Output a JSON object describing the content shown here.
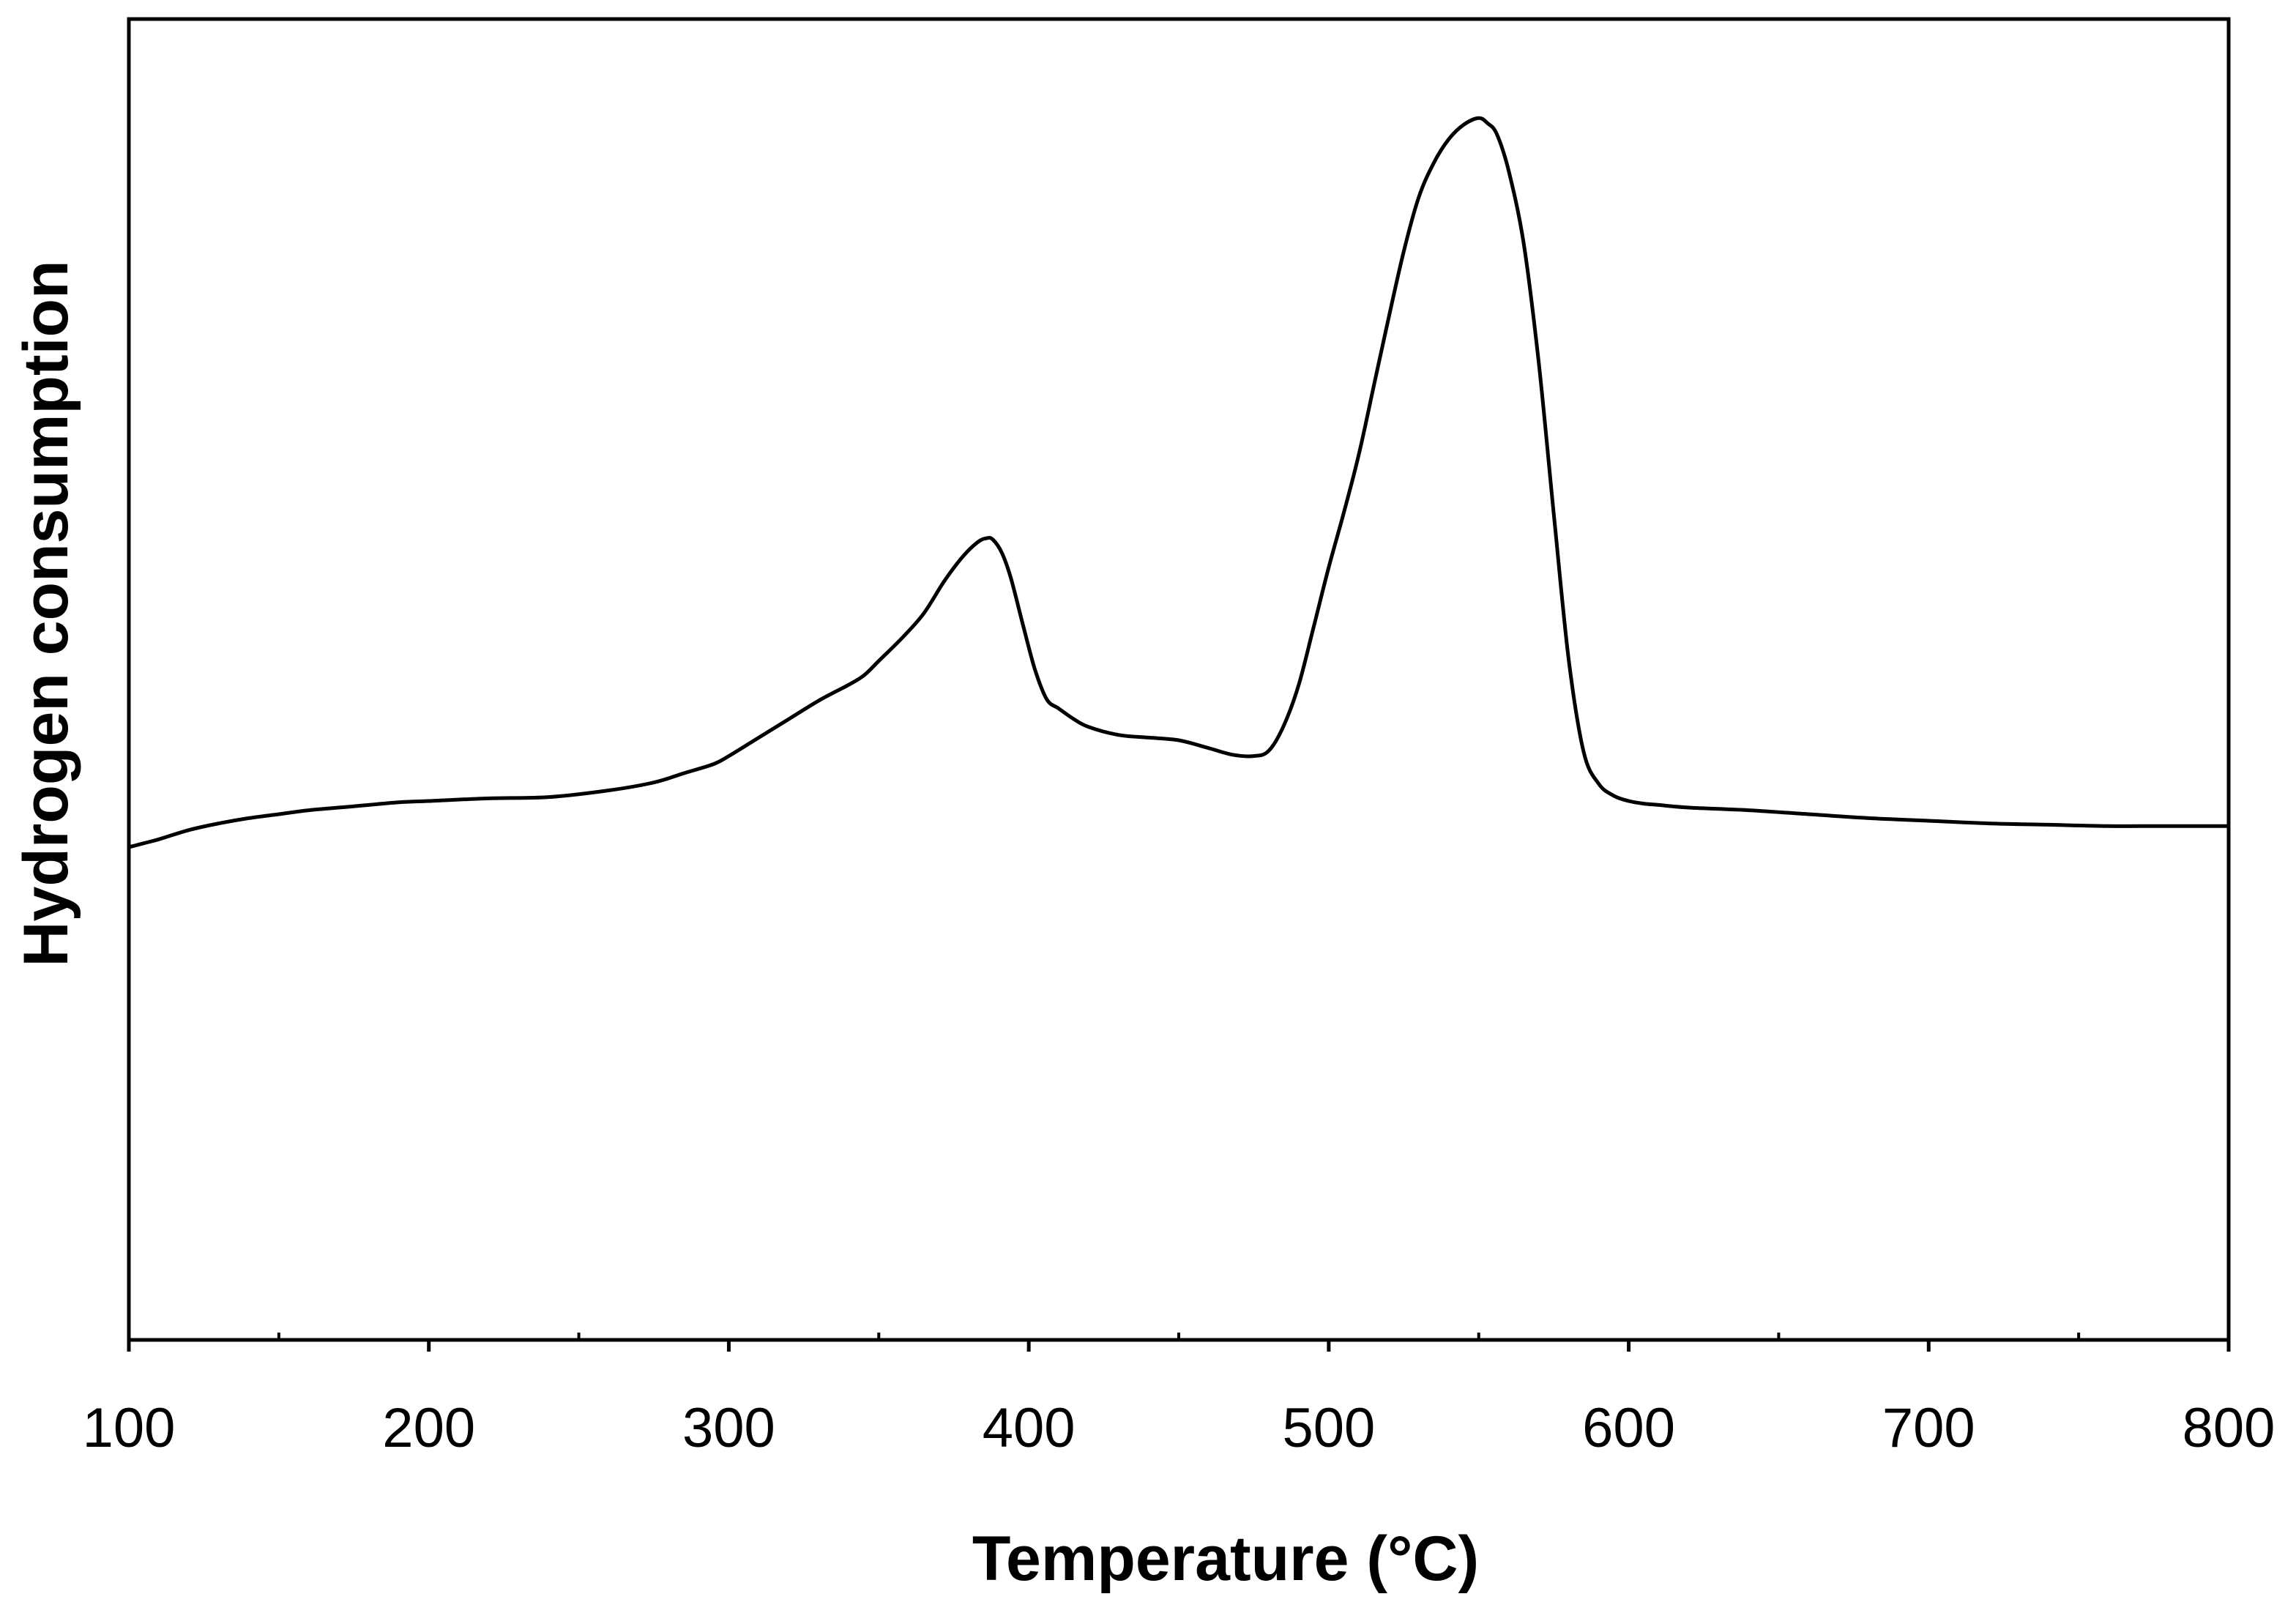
{
  "chart_data": {
    "type": "line",
    "title": "",
    "xlabel": "Temperature (°C)",
    "ylabel": "Hydrogen consumption",
    "xlim": [
      100,
      800
    ],
    "ylim": [
      0,
      100
    ],
    "x_ticks": [
      "100",
      "200",
      "300",
      "400",
      "500",
      "600",
      "700",
      "800"
    ],
    "x_minor_step": 50,
    "y_ticks_shown": false,
    "grid": false,
    "legend": "none",
    "line_color": "#000000",
    "series": [
      {
        "x": [
          100,
          105,
          110,
          120,
          130,
          140,
          150,
          160,
          175,
          190,
          200,
          220,
          240,
          260,
          275,
          285,
          295,
          300,
          310,
          320,
          330,
          340,
          345,
          350,
          358,
          365,
          372,
          378,
          383,
          386,
          388,
          391,
          394,
          398,
          402,
          406,
          410,
          415,
          420,
          430,
          440,
          450,
          460,
          468,
          475,
          480,
          485,
          490,
          495,
          500,
          505,
          510,
          515,
          520,
          525,
          530,
          535,
          540,
          545,
          550,
          553,
          556,
          560,
          565,
          570,
          575,
          580,
          585,
          590,
          595,
          600,
          605,
          610,
          620,
          640,
          660,
          680,
          700,
          720,
          740,
          760,
          780,
          800
        ],
        "y": [
          37.3,
          37.6,
          37.9,
          38.6,
          39.1,
          39.5,
          39.8,
          40.1,
          40.4,
          40.7,
          40.8,
          41.0,
          41.1,
          41.6,
          42.2,
          42.9,
          43.6,
          44.2,
          45.6,
          47.0,
          48.4,
          49.6,
          50.3,
          51.4,
          53.2,
          55.0,
          57.5,
          59.3,
          60.4,
          60.7,
          60.6,
          59.6,
          57.7,
          54.2,
          50.8,
          48.5,
          47.8,
          47.0,
          46.4,
          45.8,
          45.6,
          45.4,
          44.8,
          44.3,
          44.2,
          44.6,
          46.5,
          49.6,
          54.0,
          58.5,
          62.6,
          67.0,
          72.2,
          77.4,
          82.4,
          86.5,
          89.1,
          90.9,
          92.0,
          92.5,
          92.1,
          91.3,
          88.5,
          83.0,
          74.0,
          62.6,
          51.5,
          44.5,
          42.1,
          41.2,
          40.8,
          40.6,
          40.5,
          40.3,
          40.1,
          39.8,
          39.5,
          39.3,
          39.1,
          39.0,
          38.9,
          38.9,
          38.9
        ]
      }
    ]
  }
}
